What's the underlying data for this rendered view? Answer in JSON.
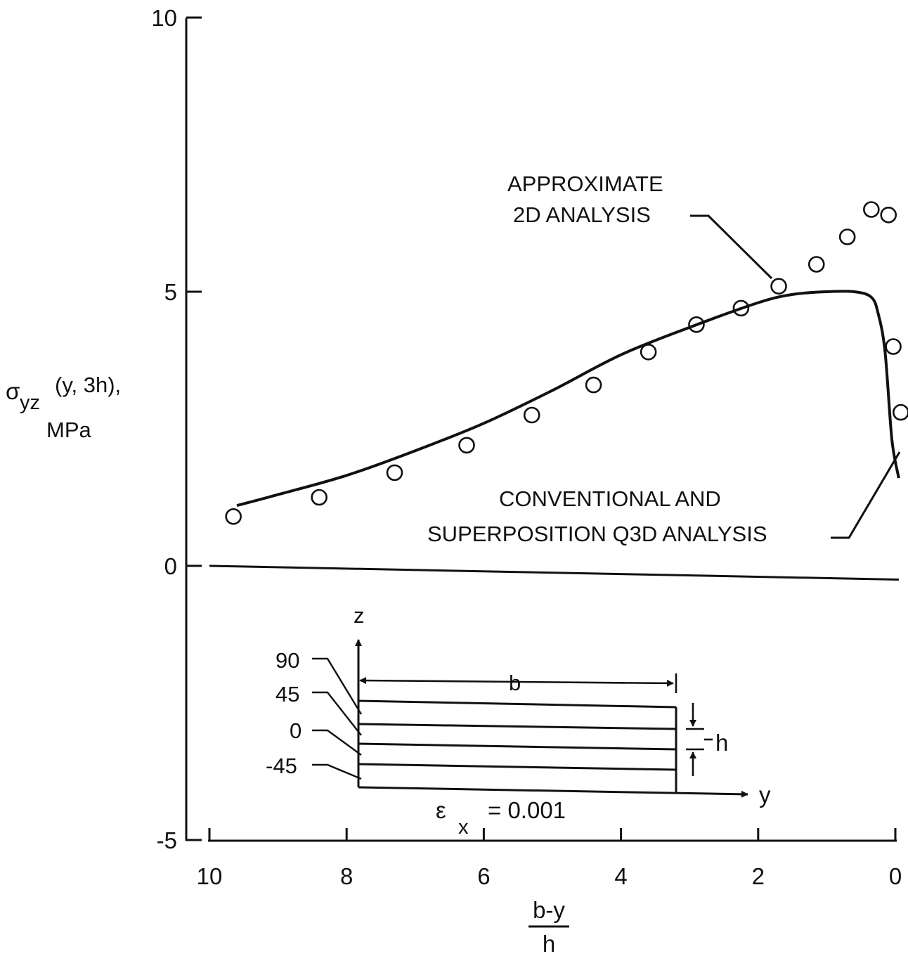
{
  "chart_data": {
    "type": "line",
    "title": "",
    "xlabel_num": "b-y",
    "xlabel_den": "h",
    "ylabel_line1_sym": "σ",
    "ylabel_line1_sub": "yz",
    "ylabel_line1_rest": "(y, 3h),",
    "ylabel_line2": "MPa",
    "xlim": [
      10,
      0
    ],
    "ylim": [
      -5,
      10
    ],
    "x_ticks": [
      "10",
      "8",
      "6",
      "4",
      "2",
      "0"
    ],
    "x_tick_values": [
      10,
      8,
      6,
      4,
      2,
      0
    ],
    "y_ticks": [
      "10",
      "5",
      "0",
      "-5"
    ],
    "y_tick_values": [
      10,
      5,
      0,
      -5
    ],
    "grid": false,
    "series": [
      {
        "name": "APPROXIMATE 2D ANALYSIS",
        "style": "markers",
        "x": [
          9.65,
          8.4,
          7.3,
          6.25,
          5.3,
          4.4,
          3.6,
          2.9,
          2.25,
          1.7,
          1.15,
          0.7,
          0.35,
          0.1,
          0.03,
          -0.08
        ],
        "y": [
          0.9,
          1.25,
          1.7,
          2.2,
          2.75,
          3.3,
          3.9,
          4.4,
          4.7,
          5.1,
          5.5,
          6.0,
          6.5,
          6.4,
          4.0,
          2.8
        ]
      },
      {
        "name": "CONVENTIONAL AND SUPERPOSITION Q3D ANALYSIS",
        "style": "line",
        "x": [
          9.6,
          9.0,
          8.0,
          7.0,
          6.0,
          5.0,
          4.0,
          3.0,
          2.0,
          1.5,
          1.0,
          0.6,
          0.35,
          0.25,
          0.15,
          0.05,
          -0.05
        ],
        "y": [
          1.1,
          1.3,
          1.65,
          2.1,
          2.6,
          3.2,
          3.85,
          4.35,
          4.8,
          4.95,
          5.0,
          5.0,
          4.9,
          4.6,
          3.9,
          2.3,
          1.6
        ]
      },
      {
        "style": "baseline",
        "x": [
          10.0,
          -0.05
        ],
        "y": [
          0.0,
          -0.25
        ]
      }
    ],
    "annotations": {
      "approx_line1": "APPROXIMATE",
      "approx_line2": "2D ANALYSIS",
      "conv_line1": "CONVENTIONAL AND",
      "conv_line2": "SUPERPOSITION Q3D ANALYSIS"
    },
    "inset": {
      "z_label": "z",
      "y_label": "y",
      "b_label": "b",
      "h_label": "h",
      "ply_labels": [
        "90",
        "45",
        "0",
        "-45"
      ],
      "strain_sym": "ε",
      "strain_sub": "x",
      "strain_value": "= 0.001"
    }
  }
}
